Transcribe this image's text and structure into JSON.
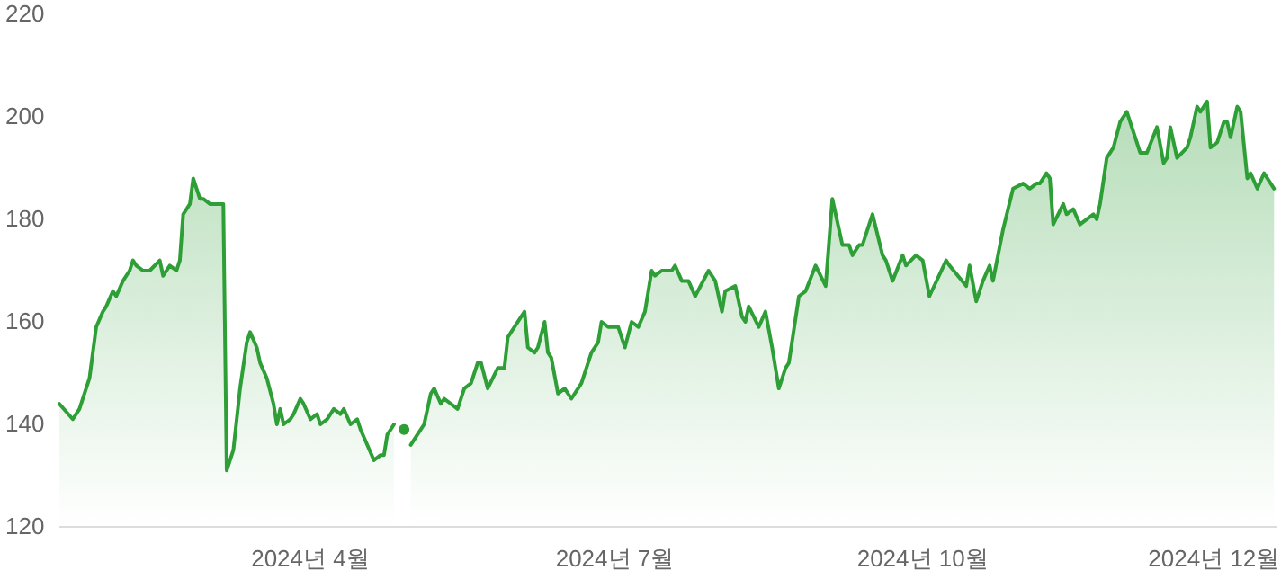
{
  "chart_data": {
    "type": "area",
    "series": [
      {
        "type": "scatter",
        "color": "#2e9e36",
        "x": [
          "2024-04-29"
        ],
        "values": [
          139
        ]
      },
      {
        "color": "#2e9e36",
        "x": [
          "2024-01-17",
          "2024-01-21",
          "2024-01-23",
          "2024-01-26",
          "2024-01-28",
          "2024-01-30",
          "2024-01-31",
          "2024-02-02",
          "2024-02-03",
          "2024-02-05",
          "2024-02-07",
          "2024-02-08",
          "2024-02-09",
          "2024-02-11",
          "2024-02-13",
          "2024-02-16",
          "2024-02-17",
          "2024-02-19",
          "2024-02-21",
          "2024-02-22",
          "2024-02-23",
          "2024-02-25",
          "2024-02-26",
          "2024-02-28",
          "2024-02-29",
          "2024-03-02",
          "2024-03-04",
          "2024-03-06",
          "2024-03-07",
          "2024-03-09",
          "2024-03-11",
          "2024-03-13",
          "2024-03-14",
          "2024-03-16",
          "2024-03-17",
          "2024-03-19",
          "2024-03-21",
          "2024-03-22",
          "2024-03-23",
          "2024-03-24",
          "2024-03-26",
          "2024-03-27",
          "2024-03-29",
          "2024-03-30",
          "2024-04-01",
          "2024-04-03",
          "2024-04-04",
          "2024-04-06",
          "2024-04-08",
          "2024-04-10",
          "2024-04-11",
          "2024-04-13",
          "2024-04-15",
          "2024-04-16",
          "2024-04-18",
          "2024-04-20",
          "2024-04-22",
          "2024-04-23",
          "2024-04-24",
          "2024-04-26",
          "2024-04-28",
          "2024-05-01",
          "2024-05-03",
          "2024-05-05",
          "2024-05-07",
          "2024-05-08",
          "2024-05-10",
          "2024-05-11",
          "2024-05-15",
          "2024-05-17",
          "2024-05-19",
          "2024-05-21",
          "2024-05-22",
          "2024-05-24",
          "2024-05-27",
          "2024-05-29",
          "2024-05-30",
          "2024-06-01",
          "2024-06-04",
          "2024-06-05",
          "2024-06-07",
          "2024-06-08",
          "2024-06-10",
          "2024-06-11",
          "2024-06-12",
          "2024-06-14",
          "2024-06-16",
          "2024-06-18",
          "2024-06-21",
          "2024-06-24",
          "2024-06-26",
          "2024-06-27",
          "2024-06-29",
          "2024-07-01",
          "2024-07-02",
          "2024-07-04",
          "2024-07-06",
          "2024-07-08",
          "2024-07-10",
          "2024-07-12",
          "2024-07-13",
          "2024-07-15",
          "2024-07-18",
          "2024-07-19",
          "2024-07-21",
          "2024-07-23",
          "2024-07-25",
          "2024-07-29",
          "2024-07-31",
          "2024-08-02",
          "2024-08-03",
          "2024-08-06",
          "2024-08-08",
          "2024-08-09",
          "2024-08-10",
          "2024-08-13",
          "2024-08-15",
          "2024-08-17",
          "2024-08-19",
          "2024-08-21",
          "2024-08-22",
          "2024-08-25",
          "2024-08-27",
          "2024-08-30",
          "2024-09-02",
          "2024-09-04",
          "2024-09-07",
          "2024-09-09",
          "2024-09-10",
          "2024-09-12",
          "2024-09-13",
          "2024-09-16",
          "2024-09-19",
          "2024-09-20",
          "2024-09-22",
          "2024-09-25",
          "2024-09-26",
          "2024-09-29",
          "2024-10-01",
          "2024-10-03",
          "2024-10-08",
          "2024-10-09",
          "2024-10-14",
          "2024-10-15",
          "2024-10-17",
          "2024-10-19",
          "2024-10-21",
          "2024-10-22",
          "2024-10-25",
          "2024-10-28",
          "2024-10-31",
          "2024-11-02",
          "2024-11-04",
          "2024-11-05",
          "2024-11-07",
          "2024-11-08",
          "2024-11-09",
          "2024-11-12",
          "2024-11-13",
          "2024-11-15",
          "2024-11-17",
          "2024-11-21",
          "2024-11-22",
          "2024-11-23",
          "2024-11-25",
          "2024-11-27",
          "2024-11-29",
          "2024-12-01",
          "2024-12-05",
          "2024-12-07",
          "2024-12-10",
          "2024-12-12",
          "2024-12-13",
          "2024-12-14",
          "2024-12-16",
          "2024-12-19",
          "2024-12-20",
          "2024-12-22",
          "2024-12-23",
          "2024-12-25",
          "2024-12-26",
          "2024-12-28",
          "2024-12-30",
          "2024-12-31",
          "2025-01-01",
          "2025-01-03",
          "2025-01-04",
          "2025-01-06",
          "2025-01-07",
          "2025-01-09",
          "2025-01-11",
          "2025-01-14"
        ],
        "values": [
          144,
          141,
          143,
          149,
          159,
          162,
          163,
          166,
          165,
          168,
          170,
          172,
          171,
          170,
          170,
          172,
          169,
          171,
          170,
          172,
          181,
          183,
          188,
          184,
          184,
          183,
          183,
          183,
          131,
          135,
          147,
          156,
          158,
          155,
          152,
          149,
          144,
          140,
          143,
          140,
          141,
          142,
          145,
          144,
          141,
          142,
          140,
          141,
          143,
          142,
          143,
          140,
          141,
          139,
          136,
          133,
          134,
          134,
          138,
          140,
          null,
          136,
          138,
          140,
          146,
          147,
          144,
          145,
          143,
          147,
          148,
          152,
          152,
          147,
          151,
          151,
          157,
          159,
          162,
          155,
          154,
          155,
          160,
          154,
          153,
          146,
          147,
          145,
          148,
          154,
          156,
          160,
          159,
          159,
          159,
          155,
          160,
          159,
          162,
          170,
          169,
          170,
          170,
          171,
          168,
          168,
          165,
          170,
          168,
          162,
          166,
          167,
          161,
          160,
          163,
          159,
          162,
          155,
          147,
          151,
          152,
          165,
          166,
          171,
          167,
          184,
          175,
          175,
          173,
          175,
          175,
          181,
          173,
          172,
          168,
          173,
          171,
          173,
          172,
          165,
          172,
          171,
          167,
          171,
          164,
          168,
          171,
          168,
          178,
          186,
          187,
          186,
          187,
          187,
          189,
          188,
          179,
          183,
          181,
          182,
          179,
          181,
          180,
          183,
          192,
          194,
          199,
          201,
          193,
          193,
          198,
          191,
          192,
          198,
          192,
          194,
          196,
          202,
          201,
          203,
          194,
          195,
          199,
          199,
          196,
          202,
          201,
          188,
          189,
          186,
          189,
          186
        ]
      }
    ],
    "ylim": [
      120,
      220
    ],
    "yticks": [
      120,
      140,
      160,
      180,
      200,
      220
    ],
    "xlim": [
      "2024-01-17",
      "2025-01-15"
    ],
    "xticks": [
      {
        "value": "2024-04-01",
        "label": "2024년 4월"
      },
      {
        "value": "2024-07-01",
        "label": "2024년 7월"
      },
      {
        "value": "2024-10-01",
        "label": "2024년 10월"
      },
      {
        "value": "2024-12-27",
        "label": "2024년 12월"
      }
    ]
  }
}
